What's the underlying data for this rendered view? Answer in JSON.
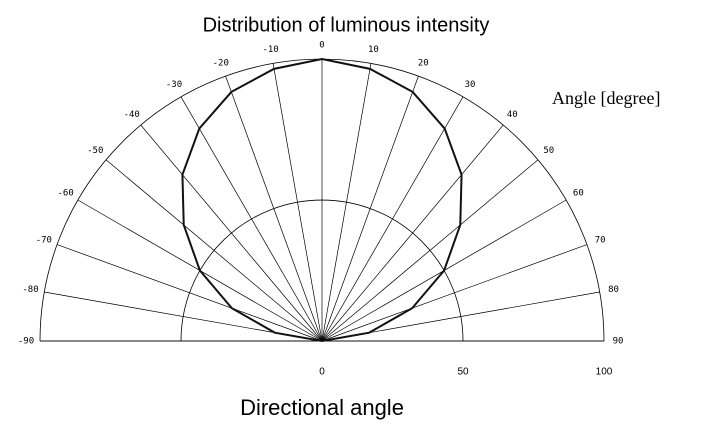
{
  "chart_data": {
    "type": "polar",
    "title": "Distribution of luminous intensity",
    "angle_label": "Angle [degree]",
    "radial_label": "Directional angle",
    "thetaticks": [
      -90,
      -80,
      -70,
      -60,
      -50,
      -40,
      -30,
      -20,
      -10,
      0,
      10,
      20,
      30,
      40,
      50,
      60,
      70,
      80,
      90
    ],
    "rlim": [
      0,
      100
    ],
    "rticks": [
      0,
      50,
      100
    ],
    "theta": [
      -90,
      -80,
      -70,
      -60,
      -50,
      -40,
      -30,
      -20,
      -10,
      0,
      10,
      20,
      30,
      40,
      50,
      60,
      70,
      80,
      90
    ],
    "values": [
      0,
      17,
      34,
      50,
      64,
      77,
      87,
      94,
      98,
      100,
      98,
      94,
      87,
      77,
      64,
      50,
      34,
      17,
      0
    ],
    "color": "#111111"
  }
}
